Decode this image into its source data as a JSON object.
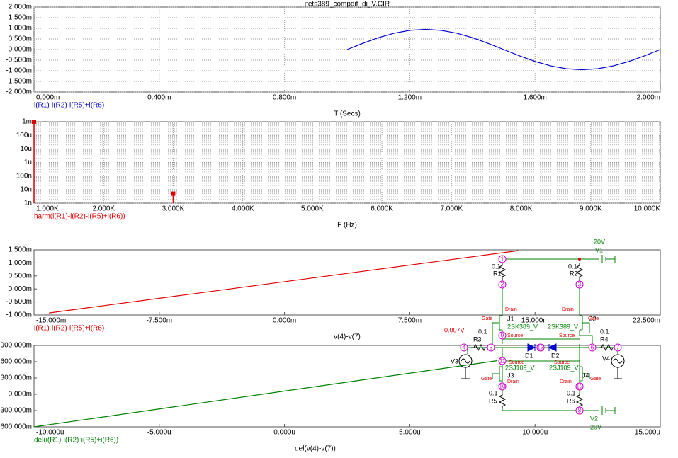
{
  "chart_data": [
    {
      "type": "line",
      "title": "jfets389_compdif_di_V.CIR",
      "x_label": "T (Secs)",
      "xlim": [
        0,
        0.002
      ],
      "ylim": [
        -0.002,
        0.002
      ],
      "grid": true,
      "xticks": [
        {
          "value": 0,
          "label": "0.000m"
        },
        {
          "value": 0.0004,
          "label": "0.400m"
        },
        {
          "value": 0.0008,
          "label": "0.800m"
        },
        {
          "value": 0.0012,
          "label": "1.200m"
        },
        {
          "value": 0.0016,
          "label": "1.600m"
        },
        {
          "value": 0.002,
          "label": "2.000m"
        }
      ],
      "yticks": [
        {
          "value": 0.002,
          "label": "2.000m"
        },
        {
          "value": 0.0015,
          "label": "1.500m"
        },
        {
          "value": 0.001,
          "label": "1.000m"
        },
        {
          "value": 0.0005,
          "label": "0.500m"
        },
        {
          "value": 0,
          "label": "0.000m"
        },
        {
          "value": -0.0005,
          "label": "-0.500m"
        },
        {
          "value": -0.001,
          "label": "-1.000m"
        },
        {
          "value": -0.0015,
          "label": "-1.500m"
        },
        {
          "value": -0.002,
          "label": "-2.000m"
        }
      ],
      "x": [
        0.001,
        0.00105,
        0.0011,
        0.00115,
        0.0012,
        0.00125,
        0.0013,
        0.00135,
        0.0014,
        0.00145,
        0.0015,
        0.00155,
        0.0016,
        0.00165,
        0.0017,
        0.00175,
        0.0018,
        0.00185,
        0.0019,
        0.00195,
        0.002
      ],
      "series": [
        {
          "name": "i(R1)-i(R2)-i(R5)+i(R6)",
          "color": "#0000cc",
          "values": [
            0,
            0.000294,
            0.000559,
            0.000769,
            0.000903,
            0.00095,
            0.000903,
            0.000769,
            0.000559,
            0.000294,
            0,
            -0.000294,
            -0.000559,
            -0.000769,
            -0.000903,
            -0.00095,
            -0.000903,
            -0.000769,
            -0.000559,
            -0.000294,
            0
          ]
        }
      ]
    },
    {
      "type": "stem",
      "x_label": "F (Hz)",
      "log_y": true,
      "grid": true,
      "xlim": [
        1000,
        10000
      ],
      "ylim": [
        1e-09,
        0.001
      ],
      "xticks": [
        {
          "value": 1000,
          "label": "1.000K"
        },
        {
          "value": 2000,
          "label": "2.000K"
        },
        {
          "value": 3000,
          "label": "3.000K"
        },
        {
          "value": 4000,
          "label": "4.000K"
        },
        {
          "value": 5000,
          "label": "5.000K"
        },
        {
          "value": 6000,
          "label": "6.000K"
        },
        {
          "value": 7000,
          "label": "7.000K"
        },
        {
          "value": 8000,
          "label": "8.000K"
        },
        {
          "value": 9000,
          "label": "9.000K"
        },
        {
          "value": 10000,
          "label": "10.000K"
        }
      ],
      "yticks": [
        {
          "value": 0.001,
          "label": "1m"
        },
        {
          "value": 0.0001,
          "label": "100u"
        },
        {
          "value": 1e-05,
          "label": "10u"
        },
        {
          "value": 1e-06,
          "label": "1u"
        },
        {
          "value": 1e-07,
          "label": "100n"
        },
        {
          "value": 1e-08,
          "label": "10n"
        },
        {
          "value": 1e-09,
          "label": "1n"
        }
      ],
      "x": [
        1000,
        3000
      ],
      "series": [
        {
          "name": "harm(i(R1)-i(R2)-i(R5)+i(R6))",
          "color": "#dd0000",
          "values": [
            0.001,
            5e-09
          ]
        }
      ]
    },
    {
      "type": "line",
      "x_label": "v(4)-v(7)",
      "grid": false,
      "xlim": [
        -0.015,
        0.0225
      ],
      "ylim": [
        -0.001,
        0.0015
      ],
      "xticks": [
        {
          "value": -0.015,
          "label": "-15.000m"
        },
        {
          "value": -0.0075,
          "label": "-7.500m"
        },
        {
          "value": 0,
          "label": "0.000m"
        },
        {
          "value": 0.0075,
          "label": "7.500m"
        },
        {
          "value": 0.015,
          "label": "15.000m"
        },
        {
          "value": 0.0225,
          "label": "22.500m"
        }
      ],
      "yticks": [
        {
          "value": 0.0015,
          "label": "1.500m"
        },
        {
          "value": 0.001,
          "label": "1.000m"
        },
        {
          "value": 0.0005,
          "label": "0.500m"
        },
        {
          "value": 0,
          "label": "0.000m"
        },
        {
          "value": -0.0005,
          "label": "-0.500m"
        },
        {
          "value": -0.001,
          "label": "-1.000m"
        }
      ],
      "x": [
        -0.0141,
        0.014
      ],
      "series": [
        {
          "name": "i(R1)-i(R2)-i(R5)+i(R6)",
          "color": "#dd0000",
          "values": [
            -0.00092,
            0.00147
          ]
        }
      ]
    },
    {
      "type": "line",
      "x_label": "del(v(4)-v(7))",
      "grid": false,
      "xlim": [
        -1e-05,
        1.5e-05
      ],
      "ylim": [
        -0.6,
        0.9
      ],
      "xticks": [
        {
          "value": -1e-05,
          "label": "-10.000u"
        },
        {
          "value": -5e-06,
          "label": "-5.000u"
        },
        {
          "value": 0,
          "label": "0.000u"
        },
        {
          "value": 5e-06,
          "label": "5.000u"
        },
        {
          "value": 1e-05,
          "label": "10.000u"
        },
        {
          "value": 1.5e-05,
          "label": "15.000u"
        }
      ],
      "yticks": [
        {
          "value": 0.9,
          "label": "900.000m"
        },
        {
          "value": 0.6,
          "label": "600.000m"
        },
        {
          "value": 0.3,
          "label": "300.000m"
        },
        {
          "value": 0,
          "label": "0.000m"
        },
        {
          "value": -0.3,
          "label": "-300.000m"
        },
        {
          "value": -0.6,
          "label": "-600.000m"
        }
      ],
      "x": [
        -1e-05,
        8.5e-06
      ],
      "series": [
        {
          "name": "del(i(R1)-i(R2)-i(R5)+i(R6))",
          "color": "#008000",
          "values": [
            -0.6,
            0.62
          ]
        }
      ]
    }
  ],
  "schematic": {
    "labels": [
      "20V",
      "V1",
      "0.1",
      "R1",
      "0.1",
      "R2",
      "Drain",
      "Gate",
      "J1",
      "2SK389_V",
      "Drain",
      "Gate",
      "J2",
      "2SK389_V",
      "Source",
      "Source",
      "0.007V",
      "0.1",
      "R3",
      "0.1",
      "R4",
      "V3",
      "V4",
      "D1",
      "D2",
      "Source",
      "Source",
      "2SJ109_V",
      "J3",
      "2SJ109_V",
      "J4",
      "Gate",
      "Drain",
      "Gate",
      "Drain",
      "0.1",
      "R5",
      "0.1",
      "R6",
      "V2",
      "20V"
    ],
    "nodes": [
      "1",
      "2",
      "3",
      "9",
      "4",
      "5",
      "13",
      "6",
      "7",
      "11",
      "10",
      "12",
      "8"
    ]
  }
}
